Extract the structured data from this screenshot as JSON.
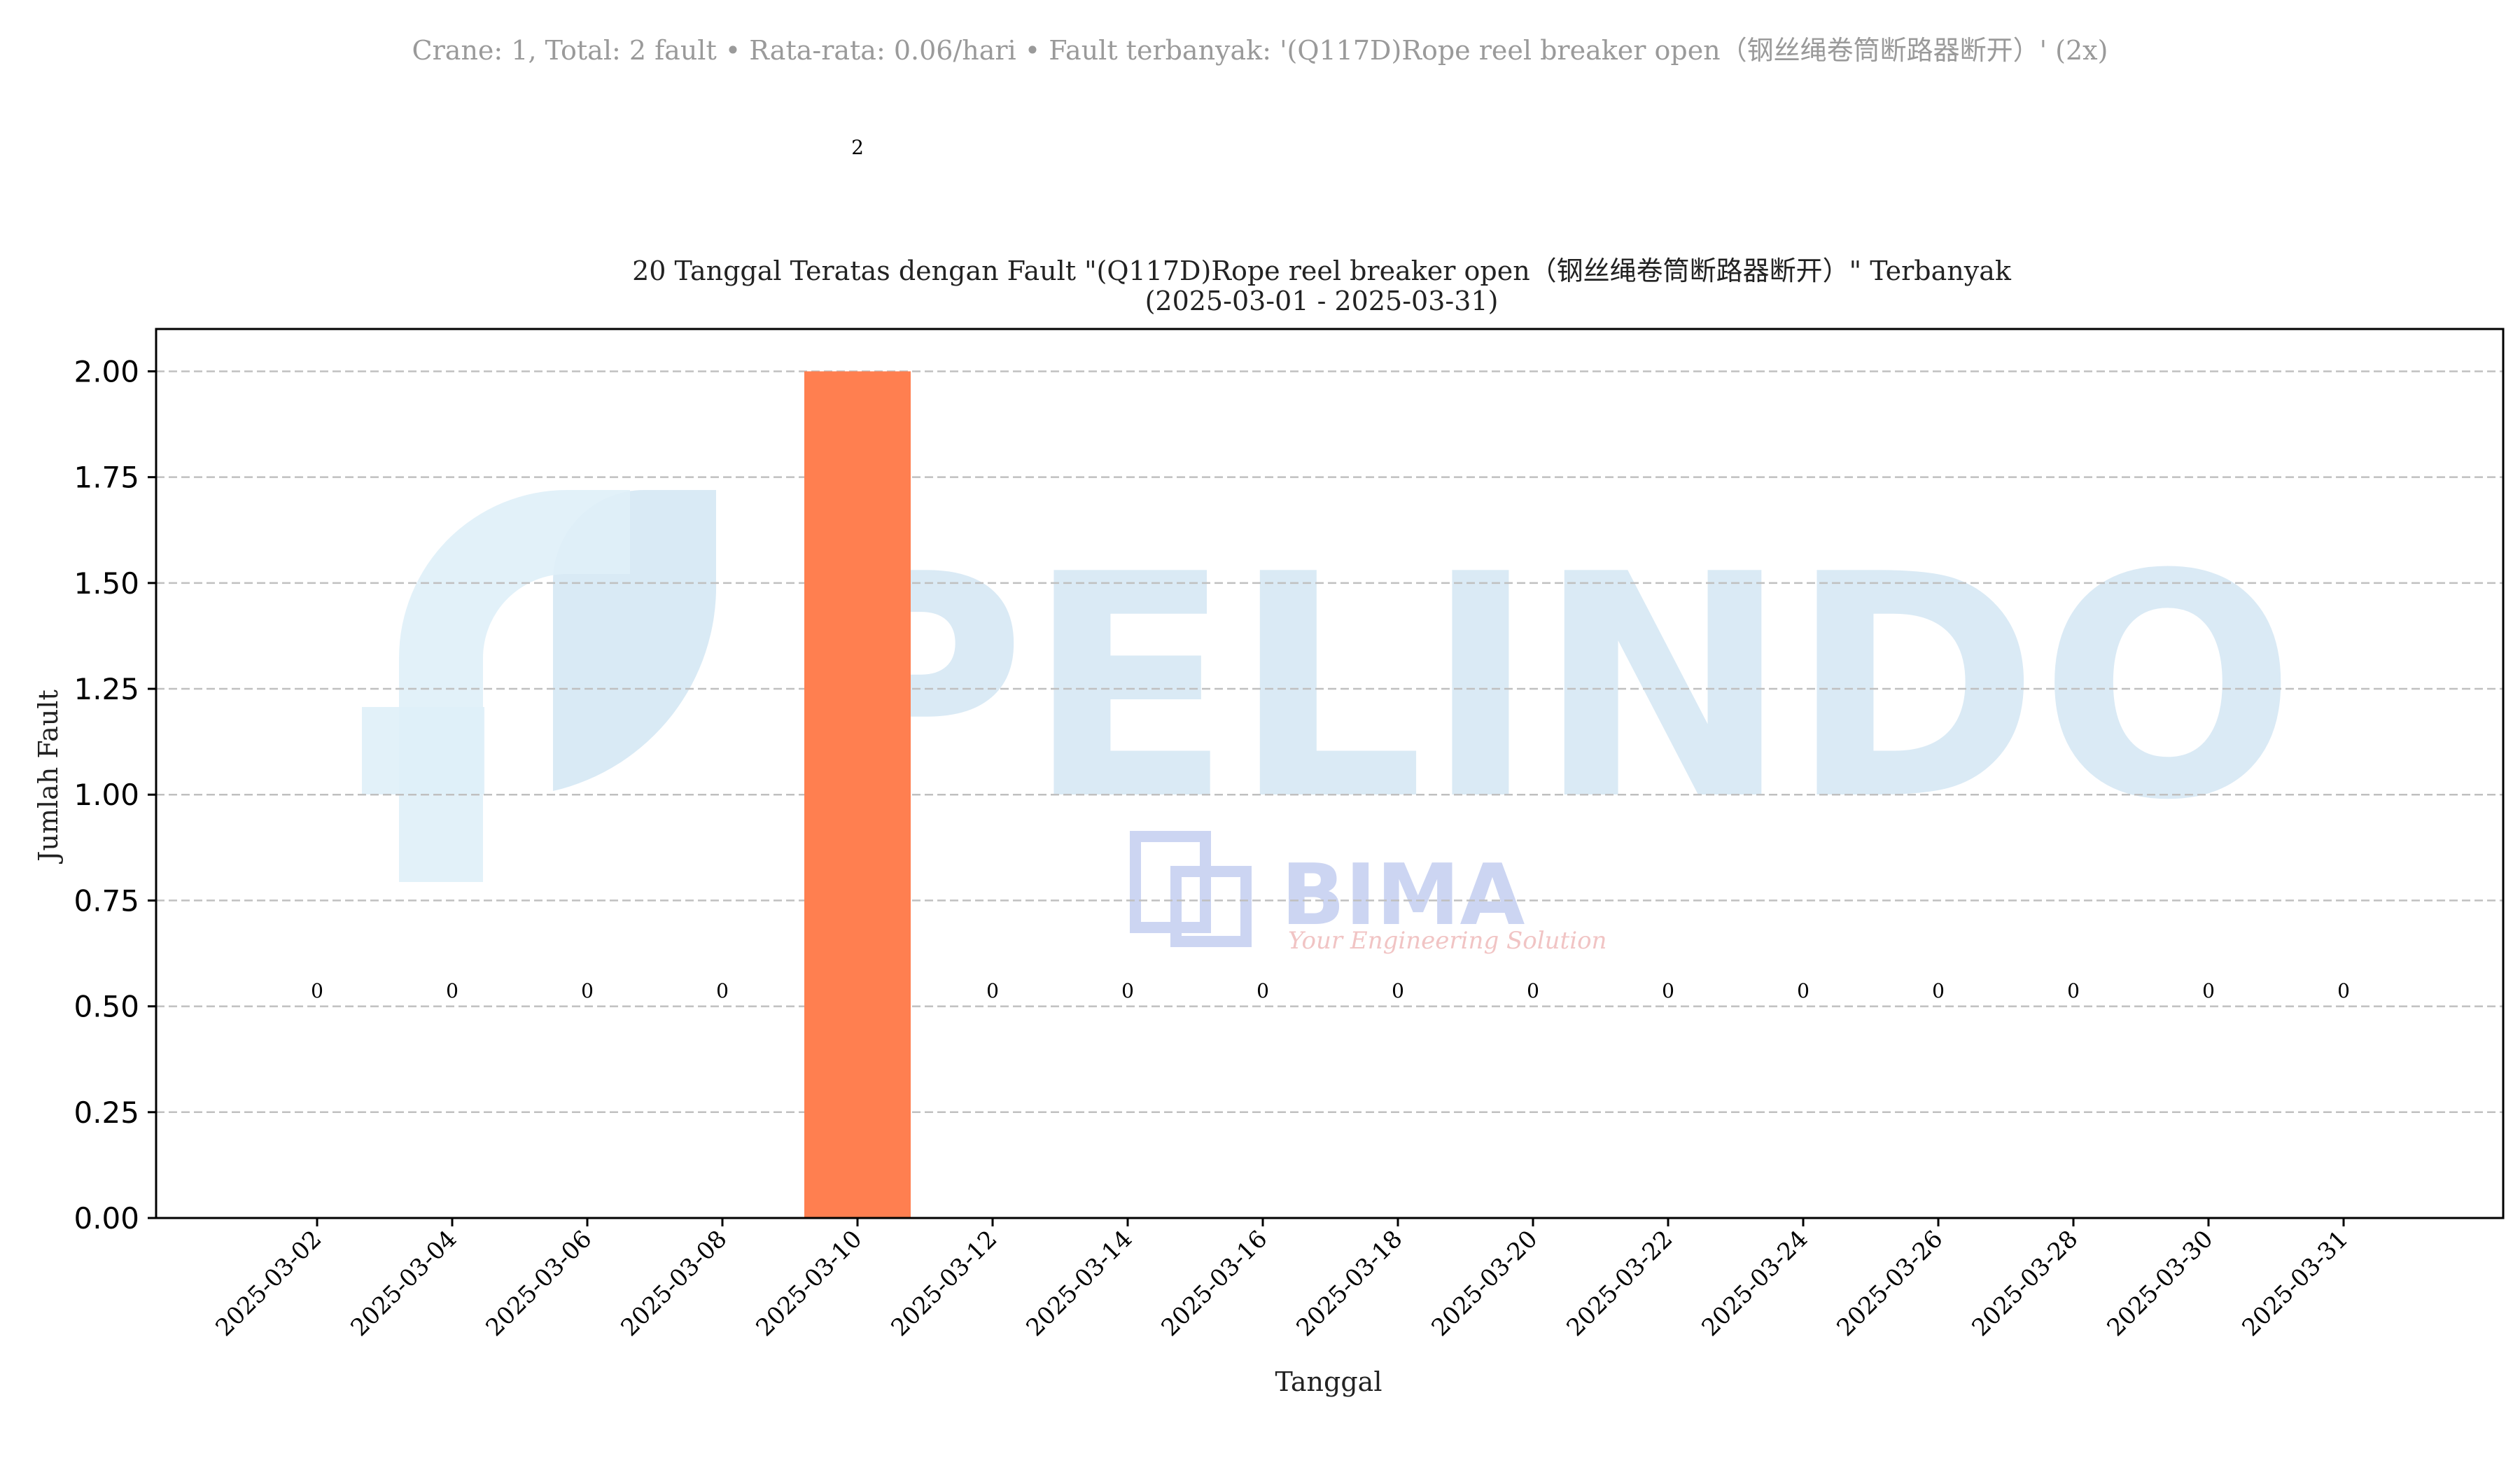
{
  "summary": "Crane: 1, Total: 2 fault • Rata-rata: 0.06/hari • Fault terbanyak: '(Q117D)Rope reel breaker open（钢丝绳卷筒断路器断开）' (2x)",
  "watermark": {
    "brand": "PELINDO",
    "sub_brand": "BIMA",
    "tagline": "Your Engineering Solution"
  },
  "colors": {
    "bar": "#ff7f50",
    "grid": "#c0c0c0",
    "axis": "#000000",
    "watermark": "#d2e6f3"
  },
  "chart_data": {
    "type": "bar",
    "title_line1": "20 Tanggal Teratas dengan Fault \"(Q117D)Rope reel breaker open（钢丝绳卷筒断路器断开）\" Terbanyak",
    "title_line2": "(2025-03-01 - 2025-03-31)",
    "xlabel": "Tanggal",
    "ylabel": "Jumlah Fault",
    "ylim": [
      0,
      2.1
    ],
    "yticks": [
      "0.00",
      "0.25",
      "0.50",
      "0.75",
      "1.00",
      "1.25",
      "1.50",
      "1.75",
      "2.00"
    ],
    "grid": "y",
    "categories": [
      "2025-03-02",
      "2025-03-04",
      "2025-03-06",
      "2025-03-08",
      "2025-03-10",
      "2025-03-12",
      "2025-03-14",
      "2025-03-16",
      "2025-03-18",
      "2025-03-20",
      "2025-03-22",
      "2025-03-24",
      "2025-03-26",
      "2025-03-28",
      "2025-03-30",
      "2025-03-31"
    ],
    "values": [
      0,
      0,
      0,
      0,
      2,
      0,
      0,
      0,
      0,
      0,
      0,
      0,
      0,
      0,
      0,
      0
    ],
    "data_labels": [
      "0",
      "0",
      "0",
      "0",
      "2",
      "0",
      "0",
      "0",
      "0",
      "0",
      "0",
      "0",
      "0",
      "0",
      "0",
      "0"
    ]
  }
}
